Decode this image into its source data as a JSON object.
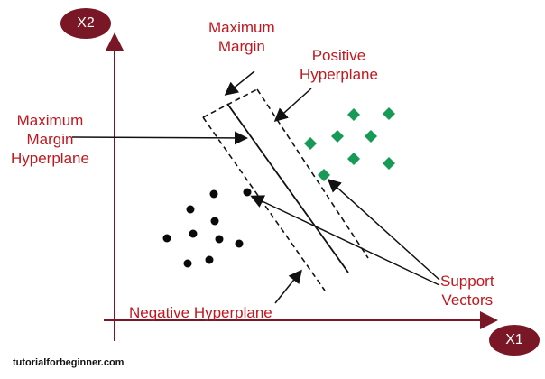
{
  "axes": {
    "x_label": "X1",
    "y_label": "X2"
  },
  "labels": {
    "top_margin_line1": "Maximum",
    "top_margin_line2": "Margin",
    "positive_line1": "Positive",
    "positive_line2": "Hyperplane",
    "mmh_line1": "Maximum",
    "mmh_line2": "Margin",
    "mmh_line3": "Hyperplane",
    "support_line1": "Support",
    "support_line2": "Vectors",
    "negative": "Negative Hyperplane"
  },
  "footer": "tutorialforbeginner.com",
  "colors": {
    "axis": "#7a1726",
    "label": "#c0181f",
    "positive_point": "#179a55",
    "negative_point": "#0a0a0a"
  },
  "point_counts": {
    "positive_class": 9,
    "negative_class": 10
  }
}
